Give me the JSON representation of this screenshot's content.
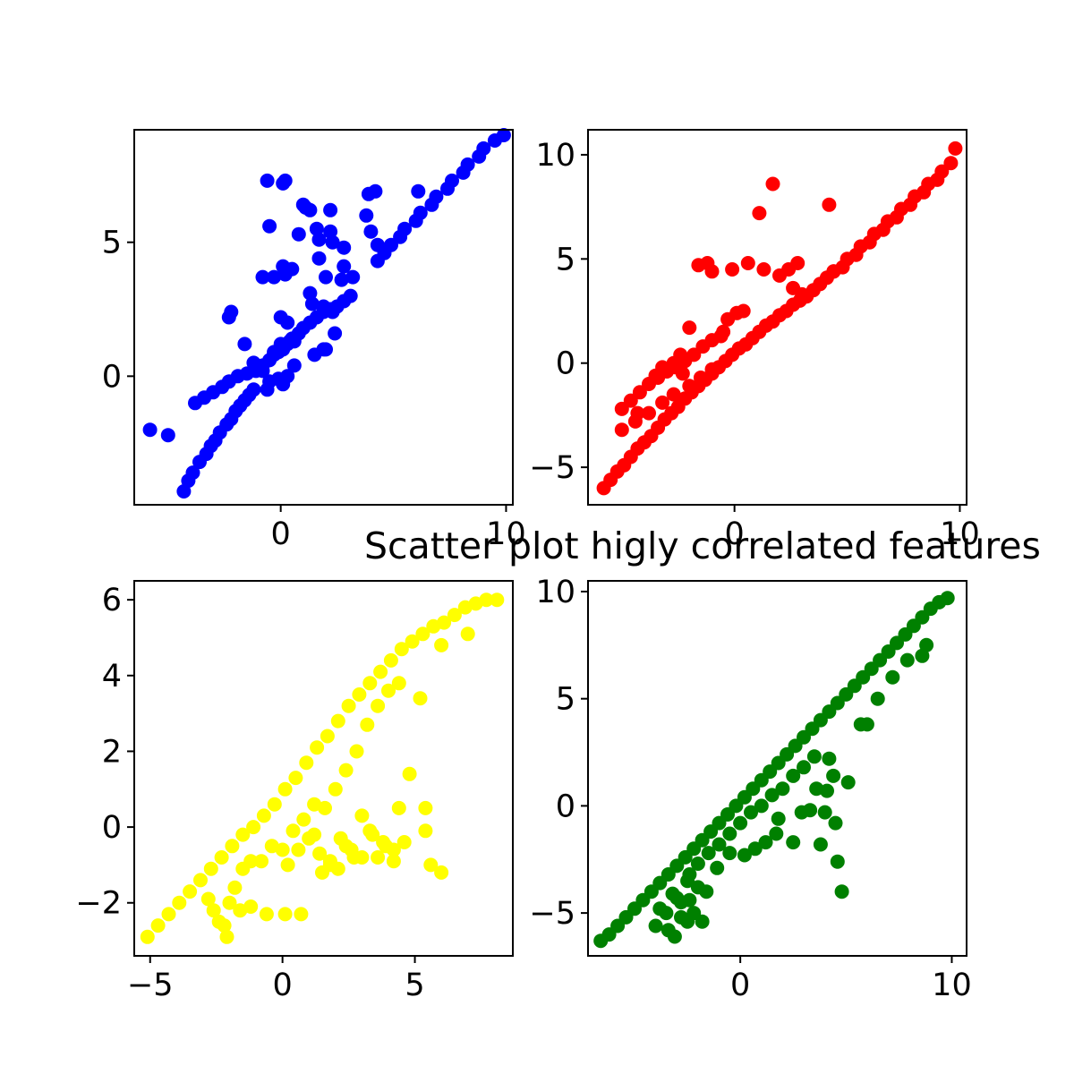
{
  "title": "Scatter plot higly correlated features",
  "chart_data": [
    {
      "type": "scatter",
      "color": "#0000ff",
      "xlim": [
        -6.5,
        10.3
      ],
      "ylim": [
        -4.8,
        9.2
      ],
      "xticks": [
        0,
        10
      ],
      "xtick_labels": [
        "0",
        "10"
      ],
      "yticks": [
        0,
        5
      ],
      "ytick_labels": [
        "0",
        "5"
      ],
      "grid": false,
      "series": [
        {
          "x": [
            -5.8,
            -5.0,
            -4.3,
            -4.1,
            -3.9,
            -3.6,
            -3.3,
            -3.1,
            -2.9,
            -2.7,
            -2.4,
            -2.2,
            -2.0,
            -1.8,
            -1.6,
            -1.4,
            -1.2,
            -3.8,
            -3.4,
            -3.0,
            -2.6,
            -2.3,
            -1.9,
            -1.5,
            -1.1,
            -0.8,
            -0.5,
            -0.3,
            -0.1,
            0.1,
            0.3,
            0.5,
            0.8,
            1.0,
            1.3,
            1.6,
            1.9,
            2.2,
            2.5,
            2.8,
            3.1,
            -2.3,
            -2.2,
            -1.6,
            -1.2,
            -0.8,
            -0.3,
            0.0,
            0.4,
            0.6,
            -0.6,
            -0.5,
            0.1,
            0.2,
            1.0,
            1.1,
            1.3,
            1.6,
            1.7,
            2.2,
            2.2,
            2.0,
            2.8,
            -0.8,
            -0.3,
            0.0,
            0.1,
            0.2,
            0.3,
            0.5,
            0.8,
            1.7,
            2.3,
            2.8,
            2.7,
            3.2,
            3.9,
            4.2,
            4.3,
            4.0,
            6.1,
            3.8,
            -0.5,
            -0.6,
            -0.1,
            0.3,
            0.1,
            0.6,
            1.5,
            1.9,
            2.0,
            2.4,
            1.9,
            2.3,
            1.4,
            1.3,
            4.3,
            4.9,
            5.5,
            6.2,
            6.9,
            7.6,
            8.3,
            9.0,
            9.9,
            4.6,
            5.3,
            6.0,
            6.7,
            7.4,
            8.1,
            8.8,
            9.5
          ],
          "y": [
            -2.0,
            -2.2,
            -4.3,
            -3.9,
            -3.6,
            -3.2,
            -2.9,
            -2.6,
            -2.4,
            -2.1,
            -1.8,
            -1.6,
            -1.3,
            -1.1,
            -0.9,
            -0.7,
            -0.5,
            -1.0,
            -0.8,
            -0.6,
            -0.4,
            -0.2,
            0.0,
            0.1,
            0.2,
            0.4,
            0.6,
            0.8,
            0.9,
            1.0,
            1.2,
            1.4,
            1.6,
            1.8,
            2.0,
            2.2,
            2.4,
            2.5,
            2.6,
            2.8,
            3.0,
            2.2,
            2.4,
            1.2,
            0.5,
            0.2,
            0.9,
            1.2,
            1.3,
            1.3,
            7.3,
            5.6,
            7.2,
            7.3,
            6.4,
            6.3,
            6.2,
            5.5,
            5.1,
            5.4,
            6.2,
            3.7,
            4.8,
            3.7,
            3.7,
            2.2,
            4.1,
            3.8,
            2.0,
            4.0,
            5.3,
            4.4,
            5.0,
            4.1,
            3.6,
            3.7,
            6.8,
            6.9,
            4.9,
            5.4,
            6.9,
            6.0,
            -0.2,
            -0.5,
            -0.1,
            0.0,
            -0.3,
            0.4,
            0.8,
            1.0,
            1.0,
            1.6,
            2.6,
            2.4,
            2.7,
            3.1,
            4.3,
            4.9,
            5.5,
            6.1,
            6.7,
            7.3,
            7.9,
            8.5,
            9.0,
            4.6,
            5.2,
            5.8,
            6.4,
            7.0,
            7.6,
            8.2,
            8.8
          ]
        }
      ]
    },
    {
      "type": "scatter",
      "color": "#ff0000",
      "xlim": [
        -6.5,
        10.3
      ],
      "ylim": [
        -6.8,
        11.2
      ],
      "xticks": [
        0,
        10
      ],
      "xtick_labels": [
        "0",
        "10"
      ],
      "yticks": [
        -5,
        0,
        5,
        10
      ],
      "ytick_labels": [
        "−5",
        "0",
        "5",
        "10"
      ],
      "grid": false,
      "series": [
        {
          "x": [
            -5.8,
            -5.5,
            -5.2,
            -4.9,
            -4.6,
            -4.3,
            -4.0,
            -3.7,
            -3.4,
            -3.1,
            -2.8,
            -2.5,
            -2.2,
            -1.9,
            -1.6,
            -1.3,
            -1.0,
            -0.7,
            -0.4,
            -0.1,
            0.2,
            0.5,
            0.8,
            1.1,
            1.4,
            1.7,
            2.0,
            2.3,
            2.6,
            2.9,
            3.2,
            3.5,
            3.8,
            4.1,
            4.4,
            -5.0,
            -4.6,
            -4.2,
            -3.8,
            -3.4,
            -3.0,
            -2.6,
            -2.2,
            -1.8,
            -1.4,
            -1.0,
            -0.6,
            -5.0,
            -4.4,
            -3.8,
            -3.2,
            -2.7,
            -2.0,
            -1.5,
            -1.0,
            -3.5,
            -3.2,
            -2.7,
            -2.4,
            -2.6,
            -2.3,
            -0.5,
            -0.3,
            0.4,
            0.1,
            -0.1,
            0.6,
            1.1,
            1.7,
            1.3,
            2.4,
            2.8,
            2.0,
            2.6,
            3.0,
            -1.2,
            -1.0,
            -1.6,
            -2.0,
            4.2,
            -4.3,
            4.4,
            5.0,
            5.6,
            6.2,
            6.8,
            7.4,
            8.0,
            8.6,
            9.2,
            9.8,
            4.8,
            5.4,
            6.0,
            6.6,
            7.2,
            7.8,
            8.4,
            9.0,
            9.6
          ],
          "y": [
            -6.0,
            -5.6,
            -5.2,
            -4.9,
            -4.5,
            -4.1,
            -3.8,
            -3.5,
            -3.1,
            -2.7,
            -2.4,
            -2.1,
            -1.7,
            -1.4,
            -1.1,
            -0.8,
            -0.5,
            -0.2,
            0.1,
            0.4,
            0.7,
            0.9,
            1.2,
            1.5,
            1.8,
            2.0,
            2.3,
            2.5,
            2.8,
            3.0,
            3.2,
            3.5,
            3.8,
            4.1,
            4.4,
            -2.2,
            -1.8,
            -1.4,
            -1.0,
            -0.7,
            -0.4,
            -0.1,
            0.1,
            0.4,
            0.8,
            1.1,
            1.3,
            -3.2,
            -2.8,
            -2.4,
            -1.9,
            -1.5,
            -1.1,
            -0.7,
            -0.3,
            -0.6,
            -0.2,
            0.0,
            0.4,
            -0.2,
            -0.5,
            1.5,
            2.1,
            2.5,
            2.4,
            4.5,
            4.8,
            7.2,
            8.6,
            4.5,
            4.5,
            4.8,
            4.2,
            3.6,
            3.3,
            4.8,
            4.4,
            4.7,
            1.7,
            7.6,
            -2.4,
            4.4,
            5.0,
            5.6,
            6.2,
            6.8,
            7.4,
            8.0,
            8.6,
            9.2,
            10.3,
            4.6,
            5.2,
            5.8,
            6.4,
            7.0,
            7.6,
            8.2,
            8.8,
            9.6
          ]
        }
      ]
    },
    {
      "type": "scatter",
      "color": "#ffff00",
      "xlim": [
        -5.6,
        8.7
      ],
      "ylim": [
        -3.4,
        6.5
      ],
      "xticks": [
        -5,
        0,
        5
      ],
      "xtick_labels": [
        "−5",
        "0",
        "5"
      ],
      "yticks": [
        -2,
        0,
        2,
        4,
        6
      ],
      "ytick_labels": [
        "−2",
        "0",
        "2",
        "4",
        "6"
      ],
      "grid": false,
      "series": [
        {
          "x": [
            -5.1,
            -4.7,
            -4.3,
            -3.9,
            -3.5,
            -3.1,
            -2.7,
            -2.3,
            -1.9,
            -1.5,
            -1.1,
            -0.7,
            -0.3,
            0.1,
            0.5,
            0.9,
            1.3,
            1.7,
            2.1,
            2.5,
            2.9,
            3.3,
            3.7,
            4.1,
            4.5,
            4.9,
            5.3,
            5.7,
            6.1,
            6.5,
            6.9,
            7.3,
            7.7,
            8.1,
            -2.8,
            -2.6,
            -2.4,
            -2.2,
            -2.0,
            -1.8,
            -1.5,
            -1.2,
            -0.8,
            -0.4,
            0.0,
            0.4,
            0.8,
            1.2,
            1.6,
            2.0,
            2.4,
            2.8,
            3.2,
            3.6,
            4.0,
            4.4,
            0.2,
            0.6,
            1.0,
            1.4,
            1.8,
            2.2,
            2.6,
            3.0,
            3.4,
            3.8,
            4.2,
            4.6,
            5.4,
            5.4,
            5.6,
            6.0,
            1.2,
            1.8,
            2.4,
            3.0,
            3.6,
            4.2,
            4.8,
            5.2,
            6.0,
            7.0,
            -2.1,
            -1.6,
            -1.2,
            -0.6,
            0.1,
            0.7,
            1.5,
            2.1,
            2.7,
            3.3,
            3.9,
            4.4
          ],
          "y": [
            -2.9,
            -2.6,
            -2.3,
            -2.0,
            -1.7,
            -1.4,
            -1.1,
            -0.8,
            -0.5,
            -0.2,
            0.0,
            0.3,
            0.6,
            1.0,
            1.3,
            1.7,
            2.1,
            2.4,
            2.8,
            3.2,
            3.5,
            3.8,
            4.1,
            4.4,
            4.7,
            4.9,
            5.1,
            5.3,
            5.4,
            5.6,
            5.8,
            5.9,
            6.0,
            6.0,
            -1.9,
            -2.2,
            -2.5,
            -2.6,
            -2.0,
            -1.6,
            -1.1,
            -0.9,
            -0.9,
            -0.5,
            -0.6,
            -0.1,
            0.2,
            0.6,
            0.5,
            1.0,
            1.5,
            2.0,
            2.7,
            3.2,
            3.6,
            3.8,
            -1.0,
            -0.6,
            -0.3,
            -0.7,
            -0.9,
            -0.3,
            -0.6,
            -0.8,
            -0.2,
            -0.4,
            -0.9,
            -0.4,
            0.5,
            -0.1,
            -1.0,
            -1.2,
            -0.2,
            -1.0,
            -0.5,
            0.3,
            -0.8,
            -0.6,
            1.4,
            3.4,
            4.8,
            5.1,
            -2.9,
            -2.2,
            -2.1,
            -2.3,
            -2.3,
            -2.3,
            -1.2,
            -1.1,
            -0.8,
            -0.1,
            -0.5,
            0.5
          ]
        }
      ]
    },
    {
      "type": "scatter",
      "color": "#008000",
      "xlim": [
        -7.2,
        10.7
      ],
      "ylim": [
        -7.0,
        10.5
      ],
      "xticks": [
        0,
        10
      ],
      "xtick_labels": [
        "0",
        "10"
      ],
      "yticks": [
        -5,
        0,
        5,
        10
      ],
      "ytick_labels": [
        "−5",
        "0",
        "5",
        "10"
      ],
      "grid": false,
      "series": [
        {
          "x": [
            -6.6,
            -6.2,
            -5.8,
            -5.4,
            -5.0,
            -4.6,
            -4.2,
            -3.8,
            -3.4,
            -3.0,
            -2.6,
            -2.2,
            -1.8,
            -1.4,
            -1.0,
            -0.6,
            -0.2,
            0.2,
            0.6,
            1.0,
            1.4,
            1.8,
            2.2,
            2.6,
            3.0,
            3.4,
            3.8,
            4.2,
            4.6,
            5.0,
            5.4,
            5.8,
            6.2,
            6.6,
            7.0,
            7.4,
            7.8,
            8.2,
            8.6,
            9.0,
            9.4,
            9.8,
            -4.0,
            -3.5,
            -3.0,
            -2.5,
            -2.0,
            -1.5,
            -1.0,
            -0.5,
            0.0,
            0.5,
            1.0,
            1.5,
            2.0,
            2.5,
            3.0,
            3.5,
            -3.8,
            -3.2,
            -2.8,
            -2.4,
            -2.0,
            -1.6,
            -2.5,
            -1.1,
            -0.5,
            0.2,
            0.7,
            1.7,
            2.5,
            2.9,
            3.8,
            4.0,
            4.2,
            4.5,
            4.6,
            4.8,
            5.1,
            5.7,
            6.0,
            8.6,
            -3.4,
            -3.1,
            -2.8,
            -2.4,
            -2.2,
            -1.8,
            1.2,
            1.8,
            3.3,
            3.6,
            4.1,
            4.4,
            6.5,
            7.2,
            7.9,
            8.8
          ],
          "y": [
            -6.3,
            -6.0,
            -5.6,
            -5.2,
            -4.8,
            -4.4,
            -4.0,
            -3.6,
            -3.2,
            -2.8,
            -2.4,
            -2.0,
            -1.6,
            -1.2,
            -0.8,
            -0.4,
            0.0,
            0.4,
            0.8,
            1.2,
            1.6,
            2.0,
            2.4,
            2.8,
            3.2,
            3.6,
            4.0,
            4.4,
            4.8,
            5.2,
            5.6,
            6.0,
            6.4,
            6.8,
            7.2,
            7.6,
            8.0,
            8.4,
            8.8,
            9.2,
            9.5,
            9.7,
            -5.6,
            -5.0,
            -4.3,
            -3.5,
            -2.7,
            -2.2,
            -1.8,
            -1.3,
            -0.8,
            -0.3,
            0.0,
            0.5,
            0.8,
            1.4,
            1.8,
            2.3,
            -4.8,
            -4.1,
            -4.5,
            -3.2,
            -3.8,
            -4.0,
            -5.4,
            -2.9,
            -2.2,
            -2.3,
            -2.0,
            -1.3,
            -1.7,
            -0.3,
            -1.8,
            -0.3,
            2.2,
            -0.8,
            -2.6,
            -4.0,
            1.1,
            3.8,
            3.8,
            7.0,
            -5.8,
            -6.1,
            -5.2,
            -4.4,
            -5.0,
            -5.4,
            -1.7,
            -0.6,
            -0.2,
            0.8,
            0.7,
            1.4,
            5.0,
            6.0,
            6.8,
            7.5
          ]
        }
      ]
    }
  ]
}
